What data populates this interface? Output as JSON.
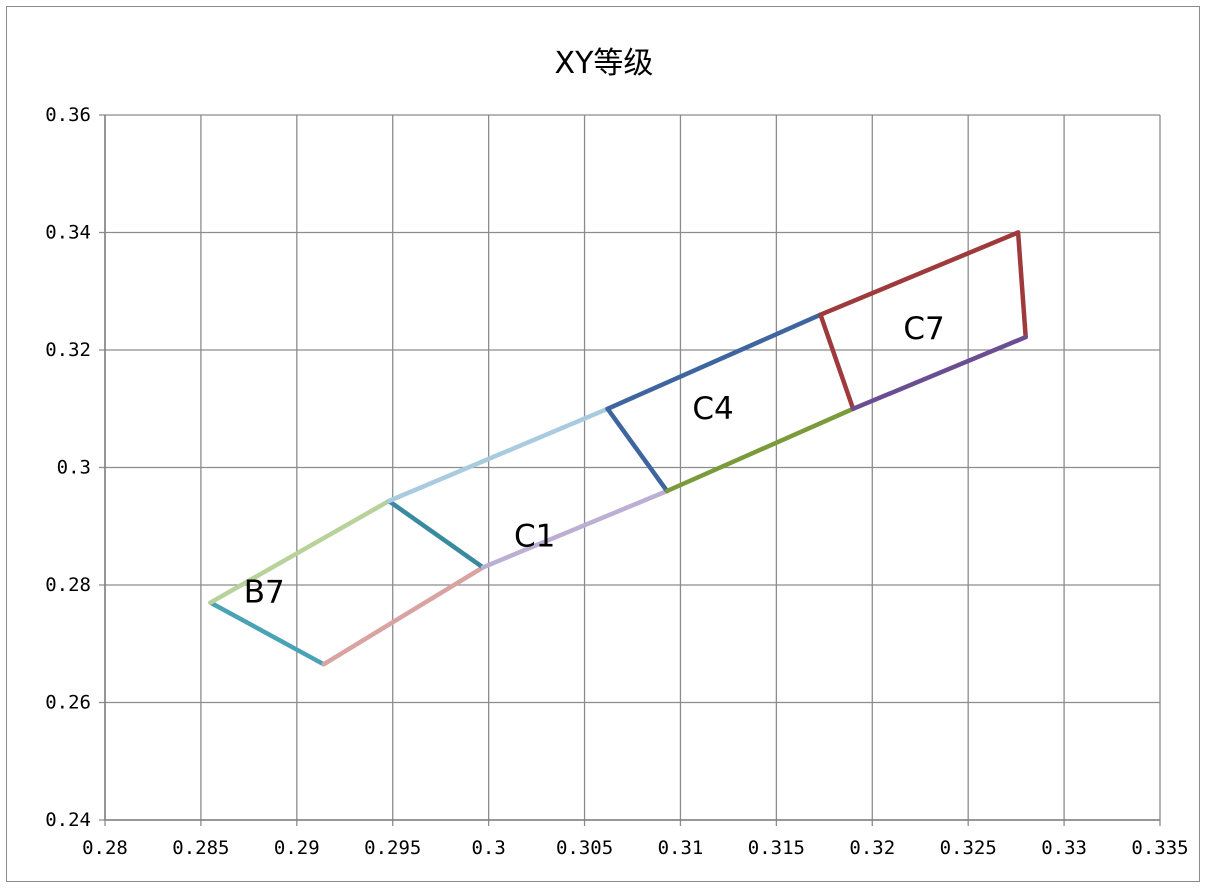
{
  "chart_data": {
    "type": "scatter",
    "title": "XY等级",
    "xlabel": "",
    "ylabel": "",
    "xlim": [
      0.28,
      0.335
    ],
    "ylim": [
      0.24,
      0.36
    ],
    "x_ticks": [
      "0.28",
      "0.285",
      "0.29",
      "0.295",
      "0.3",
      "0.305",
      "0.31",
      "0.315",
      "0.32",
      "0.325",
      "0.33",
      "0.335"
    ],
    "y_ticks": [
      "0.24",
      "0.26",
      "0.28",
      "0.3",
      "0.32",
      "0.34",
      "0.36"
    ],
    "grid": true,
    "legend": "none",
    "series": [
      {
        "color": "#4aa3b5",
        "points": [
          [
            0.2855,
            0.277
          ],
          [
            0.2914,
            0.2665
          ]
        ]
      },
      {
        "color": "#b7d29a",
        "points": [
          [
            0.2855,
            0.277
          ],
          [
            0.2948,
            0.2943
          ]
        ]
      },
      {
        "color": "#d9a3a1",
        "points": [
          [
            0.2914,
            0.2665
          ],
          [
            0.2997,
            0.283
          ]
        ]
      },
      {
        "color": "#3a8a9f",
        "points": [
          [
            0.2948,
            0.2943
          ],
          [
            0.2997,
            0.283
          ]
        ]
      },
      {
        "color": "#a9cbe0",
        "points": [
          [
            0.2948,
            0.2943
          ],
          [
            0.3062,
            0.31
          ]
        ]
      },
      {
        "color": "#bcafd3",
        "points": [
          [
            0.2997,
            0.283
          ],
          [
            0.3093,
            0.296
          ]
        ]
      },
      {
        "color": "#3e659f",
        "points": [
          [
            0.3062,
            0.31
          ],
          [
            0.3093,
            0.296
          ]
        ]
      },
      {
        "color": "#3e659f",
        "points": [
          [
            0.3062,
            0.31
          ],
          [
            0.3173,
            0.326
          ]
        ]
      },
      {
        "color": "#7a9a3c",
        "points": [
          [
            0.3093,
            0.296
          ],
          [
            0.319,
            0.31
          ]
        ]
      },
      {
        "color": "#9e3a3b",
        "points": [
          [
            0.3173,
            0.326
          ],
          [
            0.319,
            0.31
          ]
        ]
      },
      {
        "color": "#9e3a3b",
        "points": [
          [
            0.3173,
            0.326
          ],
          [
            0.3276,
            0.34
          ]
        ]
      },
      {
        "color": "#9e3a3b",
        "points": [
          [
            0.3276,
            0.34
          ],
          [
            0.328,
            0.3222
          ]
        ]
      },
      {
        "color": "#6a4e91",
        "points": [
          [
            0.319,
            0.31
          ],
          [
            0.328,
            0.3222
          ]
        ]
      }
    ],
    "annotations": [
      {
        "text": "B7",
        "x": 0.2883,
        "y": 0.2785
      },
      {
        "text": "C1",
        "x": 0.3024,
        "y": 0.288
      },
      {
        "text": "C4",
        "x": 0.3117,
        "y": 0.3097
      },
      {
        "text": "C7",
        "x": 0.3227,
        "y": 0.3233
      }
    ]
  }
}
